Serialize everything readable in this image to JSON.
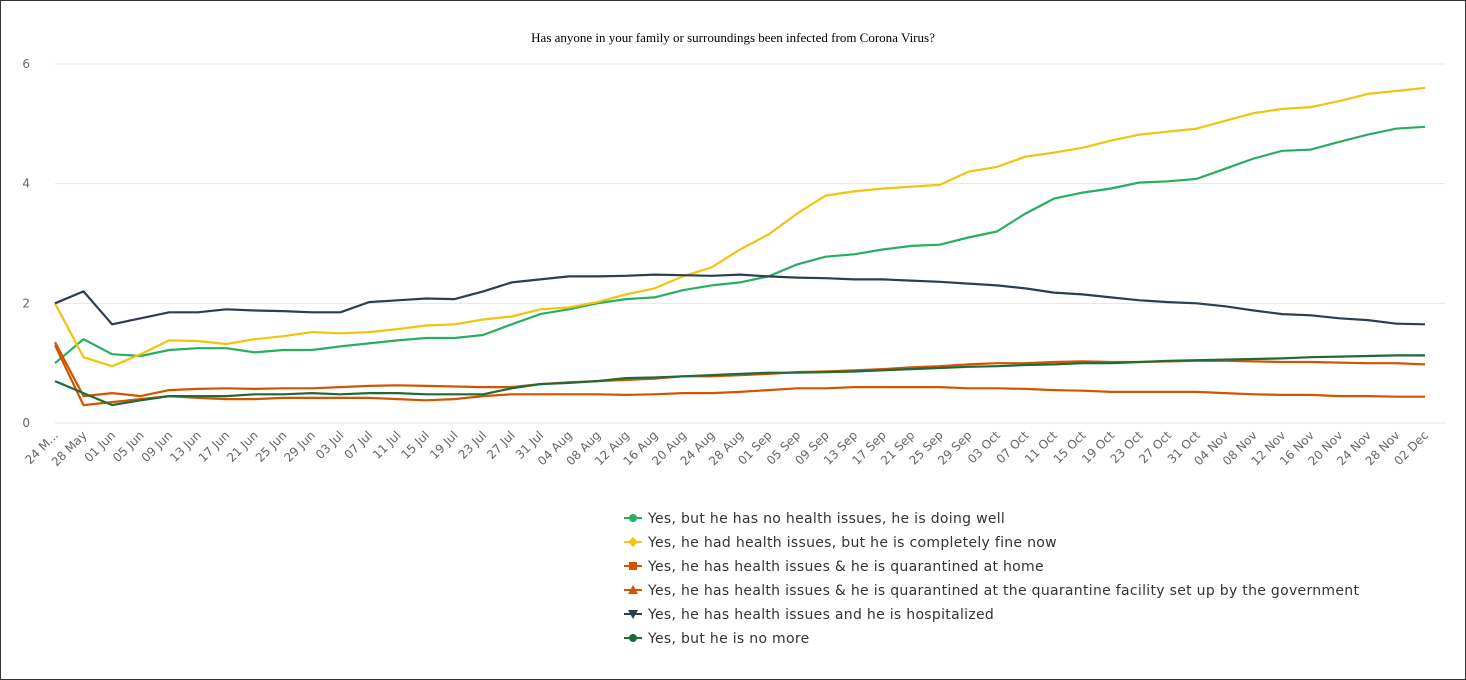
{
  "chart_data": {
    "type": "line",
    "title": "Has anyone in your family or surroundings been infected from Corona Virus?",
    "categories": [
      "24 M...",
      "28 May",
      "01 Jun",
      "05 Jun",
      "09 Jun",
      "13 Jun",
      "17 Jun",
      "21 Jun",
      "25 Jun",
      "29 Jun",
      "03 Jul",
      "07 Jul",
      "11 Jul",
      "15 Jul",
      "19 Jul",
      "23 Jul",
      "27 Jul",
      "31 Jul",
      "04 Aug",
      "08 Aug",
      "12 Aug",
      "16 Aug",
      "20 Aug",
      "24 Aug",
      "28 Aug",
      "01 Sep",
      "05 Sep",
      "09 Sep",
      "13 Sep",
      "17 Sep",
      "21 Sep",
      "25 Sep",
      "29 Sep",
      "03 Oct",
      "07 Oct",
      "11 Oct",
      "15 Oct",
      "19 Oct",
      "23 Oct",
      "27 Oct",
      "31 Oct",
      "04 Nov",
      "08 Nov",
      "12 Nov",
      "16 Nov",
      "20 Nov",
      "24 Nov",
      "28 Nov",
      "02 Dec"
    ],
    "series": [
      {
        "name": "Yes, but he has no health issues, he is doing well",
        "color": "#27ae60",
        "marker": "circle",
        "values": [
          1.0,
          1.4,
          1.15,
          1.12,
          1.22,
          1.25,
          1.25,
          1.18,
          1.22,
          1.22,
          1.28,
          1.33,
          1.38,
          1.42,
          1.42,
          1.47,
          1.65,
          1.82,
          1.9,
          2.0,
          2.07,
          2.1,
          2.22,
          2.3,
          2.35,
          2.45,
          2.65,
          2.78,
          2.82,
          2.9,
          2.96,
          2.98,
          3.1,
          3.2,
          3.5,
          3.75,
          3.85,
          3.92,
          4.02,
          4.04,
          4.08,
          4.25,
          4.42,
          4.55,
          4.57,
          4.7,
          4.82,
          4.92,
          4.95
        ]
      },
      {
        "name": "Yes, he had health issues, but he is completely fine now",
        "color": "#f1c40f",
        "marker": "diamond",
        "values": [
          2.0,
          1.1,
          0.95,
          1.15,
          1.38,
          1.37,
          1.32,
          1.4,
          1.45,
          1.52,
          1.5,
          1.52,
          1.57,
          1.63,
          1.65,
          1.73,
          1.78,
          1.9,
          1.93,
          2.02,
          2.15,
          2.25,
          2.45,
          2.6,
          2.9,
          3.15,
          3.5,
          3.8,
          3.87,
          3.92,
          3.95,
          3.98,
          4.2,
          4.28,
          4.45,
          4.52,
          4.6,
          4.72,
          4.82,
          4.87,
          4.92,
          5.05,
          5.18,
          5.25,
          5.28,
          5.38,
          5.5,
          5.55,
          5.6
        ]
      },
      {
        "name": "Yes, he has health issues & he is quarantined at home",
        "color": "#d35400",
        "marker": "square",
        "values": [
          1.35,
          0.45,
          0.5,
          0.45,
          0.55,
          0.57,
          0.58,
          0.57,
          0.58,
          0.58,
          0.6,
          0.62,
          0.63,
          0.62,
          0.61,
          0.6,
          0.6,
          0.65,
          0.68,
          0.7,
          0.72,
          0.74,
          0.78,
          0.78,
          0.8,
          0.82,
          0.85,
          0.86,
          0.88,
          0.9,
          0.93,
          0.95,
          0.98,
          1.0,
          1.0,
          1.02,
          1.03,
          1.02,
          1.02,
          1.03,
          1.04,
          1.04,
          1.03,
          1.02,
          1.02,
          1.01,
          1.0,
          1.0,
          0.98
        ]
      },
      {
        "name": "Yes, he has health issues & he is quarantined at the quarantine facility set up by the government",
        "color": "#d35400",
        "marker": "triangle",
        "values": [
          1.3,
          0.3,
          0.35,
          0.4,
          0.45,
          0.42,
          0.4,
          0.4,
          0.42,
          0.42,
          0.42,
          0.42,
          0.4,
          0.38,
          0.4,
          0.45,
          0.48,
          0.48,
          0.48,
          0.48,
          0.47,
          0.48,
          0.5,
          0.5,
          0.52,
          0.55,
          0.58,
          0.58,
          0.6,
          0.6,
          0.6,
          0.6,
          0.58,
          0.58,
          0.57,
          0.55,
          0.54,
          0.52,
          0.52,
          0.52,
          0.52,
          0.5,
          0.48,
          0.47,
          0.47,
          0.45,
          0.45,
          0.44,
          0.44
        ]
      },
      {
        "name": "Yes, he has health issues and he is hospitalized",
        "color": "#2c3e50",
        "marker": "triangle-down",
        "values": [
          2.0,
          2.2,
          1.65,
          1.75,
          1.85,
          1.85,
          1.9,
          1.88,
          1.87,
          1.85,
          1.85,
          2.02,
          2.05,
          2.08,
          2.07,
          2.2,
          2.35,
          2.4,
          2.45,
          2.45,
          2.46,
          2.48,
          2.47,
          2.46,
          2.48,
          2.45,
          2.43,
          2.42,
          2.4,
          2.4,
          2.38,
          2.36,
          2.33,
          2.3,
          2.25,
          2.18,
          2.15,
          2.1,
          2.05,
          2.02,
          2.0,
          1.95,
          1.88,
          1.82,
          1.8,
          1.75,
          1.72,
          1.66,
          1.65
        ]
      },
      {
        "name": "Yes, but he is no more",
        "color": "#1e6b3a",
        "marker": "circle",
        "values": [
          0.7,
          0.5,
          0.3,
          0.38,
          0.45,
          0.45,
          0.45,
          0.48,
          0.48,
          0.5,
          0.48,
          0.5,
          0.5,
          0.48,
          0.48,
          0.48,
          0.58,
          0.65,
          0.67,
          0.7,
          0.75,
          0.76,
          0.78,
          0.8,
          0.82,
          0.84,
          0.84,
          0.85,
          0.86,
          0.88,
          0.9,
          0.92,
          0.94,
          0.95,
          0.97,
          0.98,
          1.0,
          1.0,
          1.02,
          1.04,
          1.05,
          1.06,
          1.07,
          1.08,
          1.1,
          1.11,
          1.12,
          1.13,
          1.13
        ]
      }
    ],
    "ylim": [
      0,
      6
    ],
    "yticks": [
      0,
      2,
      4,
      6
    ],
    "grid": true
  }
}
